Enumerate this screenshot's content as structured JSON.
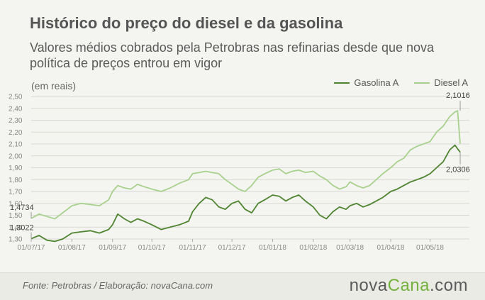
{
  "header": {
    "title": "Histórico do preço do diesel e da gasolina",
    "subtitle": "Valores médios cobrados pela Petrobras nas refinarias desde que nova política de preços entrou em vigor",
    "unit": "(em reais)"
  },
  "legend": {
    "gasolina": "Gasolina A",
    "diesel": "Diesel A"
  },
  "footer": {
    "source": "Fonte:  Petrobras  / Elaboração:  novaCana.com",
    "brand_main": "nova",
    "brand_accent": "Cana",
    "brand_tail": ".com"
  },
  "colors": {
    "gasolina": "#4f8431",
    "diesel": "#a9d18e",
    "grid": "#d9d9d4",
    "axis_text": "#888888",
    "background": "#f4f4f0",
    "footer_bg": "#ebebe6",
    "brand_accent": "#74b13d"
  },
  "chart_data": {
    "type": "line",
    "title": "Histórico do preço do diesel e da gasolina",
    "subtitle": "Valores médios cobrados pela Petrobras nas refinarias desde que nova política de preços entrou em vigor",
    "ylabel": "(em reais)",
    "xlabel": "",
    "ylim": [
      1.3,
      2.5
    ],
    "yticks": [
      "1,30",
      "1,40",
      "1,50",
      "1,60",
      "1,70",
      "1,80",
      "1,90",
      "2,00",
      "2,10",
      "2,20",
      "2,30",
      "2,40",
      "2,50"
    ],
    "xticks": [
      "01/07/17",
      "01/08/17",
      "01/09/17",
      "01/10/17",
      "01/11/17",
      "01/12/17",
      "01/01/18",
      "01/02/18",
      "01/03/18",
      "01/04/18",
      "01/05/18"
    ],
    "grid": true,
    "legend_position": "top-right",
    "series": [
      {
        "name": "Gasolina A",
        "color": "#4f8431",
        "points": [
          [
            "01/07/17",
            1.3022
          ],
          [
            "07/07/17",
            1.33
          ],
          [
            "13/07/17",
            1.29
          ],
          [
            "19/07/17",
            1.28
          ],
          [
            "25/07/17",
            1.3
          ],
          [
            "01/08/17",
            1.35
          ],
          [
            "08/08/17",
            1.36
          ],
          [
            "15/08/17",
            1.37
          ],
          [
            "22/08/17",
            1.35
          ],
          [
            "29/08/17",
            1.38
          ],
          [
            "01/09/17",
            1.42
          ],
          [
            "05/09/17",
            1.51
          ],
          [
            "10/09/17",
            1.47
          ],
          [
            "15/09/17",
            1.44
          ],
          [
            "20/09/17",
            1.47
          ],
          [
            "25/09/17",
            1.45
          ],
          [
            "01/10/17",
            1.42
          ],
          [
            "08/10/17",
            1.38
          ],
          [
            "15/10/17",
            1.4
          ],
          [
            "22/10/17",
            1.42
          ],
          [
            "29/10/17",
            1.45
          ],
          [
            "01/11/17",
            1.53
          ],
          [
            "06/11/17",
            1.6
          ],
          [
            "11/11/17",
            1.65
          ],
          [
            "16/11/17",
            1.63
          ],
          [
            "21/11/17",
            1.57
          ],
          [
            "26/11/17",
            1.55
          ],
          [
            "01/12/17",
            1.6
          ],
          [
            "06/12/17",
            1.62
          ],
          [
            "11/12/17",
            1.55
          ],
          [
            "16/12/17",
            1.52
          ],
          [
            "21/12/17",
            1.6
          ],
          [
            "26/12/17",
            1.63
          ],
          [
            "01/01/18",
            1.67
          ],
          [
            "06/01/18",
            1.66
          ],
          [
            "11/01/18",
            1.62
          ],
          [
            "16/01/18",
            1.65
          ],
          [
            "21/01/18",
            1.67
          ],
          [
            "26/01/18",
            1.62
          ],
          [
            "01/02/18",
            1.57
          ],
          [
            "06/02/18",
            1.5
          ],
          [
            "11/02/18",
            1.47
          ],
          [
            "16/02/18",
            1.53
          ],
          [
            "21/02/18",
            1.57
          ],
          [
            "26/02/18",
            1.55
          ],
          [
            "01/03/18",
            1.58
          ],
          [
            "06/03/18",
            1.6
          ],
          [
            "11/03/18",
            1.57
          ],
          [
            "16/03/18",
            1.59
          ],
          [
            "21/03/18",
            1.62
          ],
          [
            "26/03/18",
            1.65
          ],
          [
            "01/04/18",
            1.7
          ],
          [
            "06/04/18",
            1.72
          ],
          [
            "11/04/18",
            1.75
          ],
          [
            "16/04/18",
            1.78
          ],
          [
            "21/04/18",
            1.8
          ],
          [
            "26/04/18",
            1.82
          ],
          [
            "01/05/18",
            1.85
          ],
          [
            "06/05/18",
            1.9
          ],
          [
            "11/05/18",
            1.95
          ],
          [
            "16/05/18",
            2.05
          ],
          [
            "20/05/18",
            2.09
          ],
          [
            "22/05/18",
            2.06
          ],
          [
            "24/05/18",
            2.0306
          ]
        ],
        "labels": [
          [
            "01/07/17",
            "1,3022"
          ],
          [
            "24/05/18",
            "2,0306"
          ]
        ]
      },
      {
        "name": "Diesel A",
        "color": "#a9d18e",
        "points": [
          [
            "01/07/17",
            1.4734
          ],
          [
            "07/07/17",
            1.51
          ],
          [
            "13/07/17",
            1.49
          ],
          [
            "19/07/17",
            1.47
          ],
          [
            "25/07/17",
            1.52
          ],
          [
            "01/08/17",
            1.58
          ],
          [
            "08/08/17",
            1.6
          ],
          [
            "15/08/17",
            1.59
          ],
          [
            "22/08/17",
            1.58
          ],
          [
            "29/08/17",
            1.63
          ],
          [
            "01/09/17",
            1.7
          ],
          [
            "05/09/17",
            1.75
          ],
          [
            "10/09/17",
            1.73
          ],
          [
            "15/09/17",
            1.72
          ],
          [
            "20/09/17",
            1.76
          ],
          [
            "25/09/17",
            1.74
          ],
          [
            "01/10/17",
            1.72
          ],
          [
            "08/10/17",
            1.7
          ],
          [
            "15/10/17",
            1.73
          ],
          [
            "22/10/17",
            1.77
          ],
          [
            "29/10/17",
            1.8
          ],
          [
            "01/11/17",
            1.85
          ],
          [
            "06/11/17",
            1.86
          ],
          [
            "11/11/17",
            1.87
          ],
          [
            "16/11/17",
            1.86
          ],
          [
            "21/11/17",
            1.85
          ],
          [
            "26/11/17",
            1.8
          ],
          [
            "01/12/17",
            1.76
          ],
          [
            "06/12/17",
            1.72
          ],
          [
            "11/12/17",
            1.7
          ],
          [
            "16/12/17",
            1.75
          ],
          [
            "21/12/17",
            1.82
          ],
          [
            "26/12/17",
            1.85
          ],
          [
            "01/01/18",
            1.88
          ],
          [
            "06/01/18",
            1.89
          ],
          [
            "11/01/18",
            1.85
          ],
          [
            "16/01/18",
            1.87
          ],
          [
            "21/01/18",
            1.88
          ],
          [
            "26/01/18",
            1.86
          ],
          [
            "01/02/18",
            1.87
          ],
          [
            "06/02/18",
            1.83
          ],
          [
            "11/02/18",
            1.8
          ],
          [
            "16/02/18",
            1.75
          ],
          [
            "21/02/18",
            1.72
          ],
          [
            "26/02/18",
            1.74
          ],
          [
            "01/03/18",
            1.78
          ],
          [
            "06/03/18",
            1.75
          ],
          [
            "11/03/18",
            1.73
          ],
          [
            "16/03/18",
            1.75
          ],
          [
            "21/03/18",
            1.8
          ],
          [
            "26/03/18",
            1.85
          ],
          [
            "01/04/18",
            1.9
          ],
          [
            "06/04/18",
            1.95
          ],
          [
            "11/04/18",
            1.98
          ],
          [
            "16/04/18",
            2.05
          ],
          [
            "21/04/18",
            2.08
          ],
          [
            "26/04/18",
            2.1
          ],
          [
            "01/05/18",
            2.12
          ],
          [
            "06/05/18",
            2.2
          ],
          [
            "11/05/18",
            2.25
          ],
          [
            "16/05/18",
            2.33
          ],
          [
            "20/05/18",
            2.37
          ],
          [
            "22/05/18",
            2.38
          ],
          [
            "24/05/18",
            2.1016
          ]
        ],
        "labels": [
          [
            "01/07/17",
            "1,4734"
          ],
          [
            "24/05/18",
            "2,1016"
          ]
        ]
      }
    ]
  }
}
